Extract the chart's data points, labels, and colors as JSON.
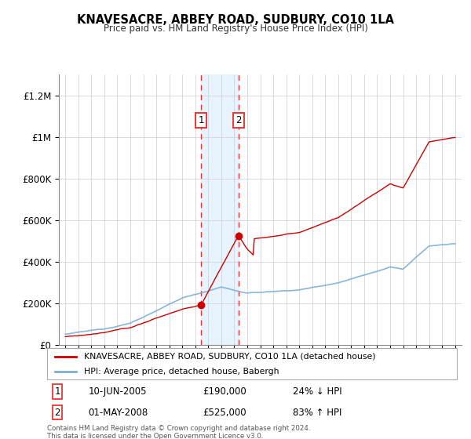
{
  "title": "KNAVESACRE, ABBEY ROAD, SUDBURY, CO10 1LA",
  "subtitle": "Price paid vs. HM Land Registry's House Price Index (HPI)",
  "legend_line1": "KNAVESACRE, ABBEY ROAD, SUDBURY, CO10 1LA (detached house)",
  "legend_line2": "HPI: Average price, detached house, Babergh",
  "annotation1_date": "10-JUN-2005",
  "annotation1_price": "£190,000",
  "annotation1_pct": "24% ↓ HPI",
  "annotation2_date": "01-MAY-2008",
  "annotation2_price": "£525,000",
  "annotation2_pct": "83% ↑ HPI",
  "footer": "Contains HM Land Registry data © Crown copyright and database right 2024.\nThis data is licensed under the Open Government Licence v3.0.",
  "red_color": "#cc0000",
  "blue_color": "#7aafd4",
  "shading_color": "#ddeeff",
  "vline_color": "#ee3333",
  "ylabel_ticks": [
    "£0",
    "£200K",
    "£400K",
    "£600K",
    "£800K",
    "£1M",
    "£1.2M"
  ],
  "ytick_values": [
    0,
    200000,
    400000,
    600000,
    800000,
    1000000,
    1200000
  ],
  "ylim": [
    0,
    1300000
  ],
  "sale1_year": 2005.44,
  "sale1_price": 190000,
  "sale2_year": 2008.33,
  "sale2_price": 525000
}
